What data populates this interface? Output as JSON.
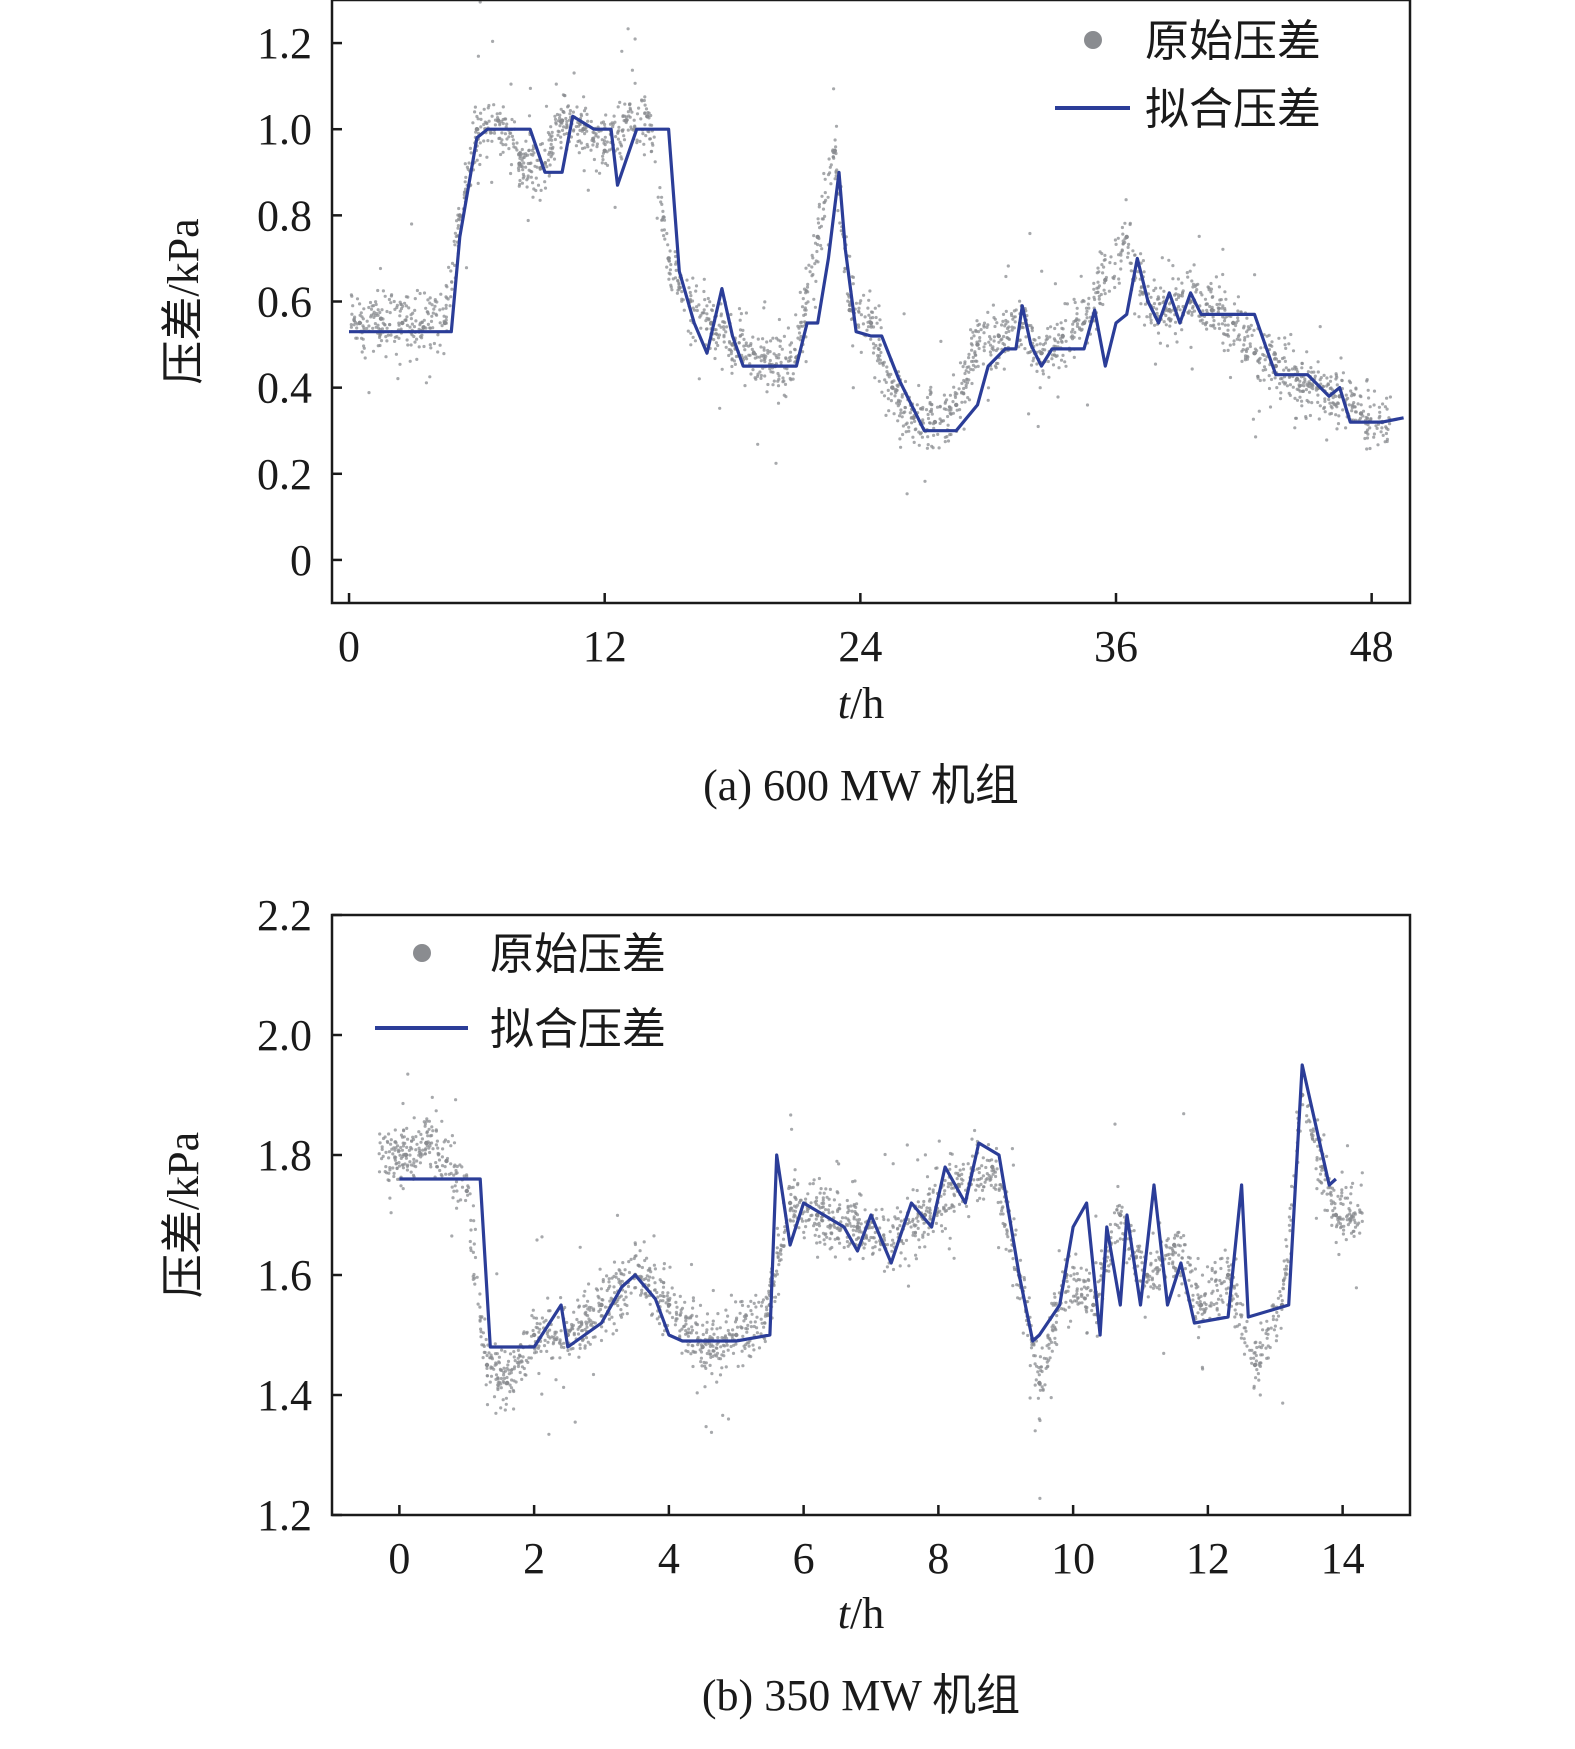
{
  "chart_data": [
    {
      "type": "line",
      "caption": "(a) 600 MW 机组",
      "xlabel_italic": "t",
      "xlabel_unit": "/h",
      "ylabel": "压差/kPa",
      "xlim": [
        -0.8,
        49.8
      ],
      "ylim": [
        -0.1,
        1.3
      ],
      "xticks": [
        0,
        12,
        24,
        36,
        48
      ],
      "yticks": [
        0,
        0.2,
        0.4,
        0.6,
        0.8,
        1.0,
        1.2
      ],
      "ytick_labels": [
        "0",
        "0.2",
        "0.4",
        "0.6",
        "0.8",
        "1.0",
        "1.2"
      ],
      "legend": {
        "placement": "top-right",
        "scatter_label": "原始压差",
        "line_label": "拟合压差"
      },
      "colors": {
        "scatter": "#8a8c90",
        "line": "#2b3d98"
      },
      "series": [
        {
          "name": "原始压差",
          "kind": "scatter",
          "x": [
            0.5,
            1.5,
            2.5,
            3.5,
            4.5,
            5.2,
            6.0,
            7.0,
            8.0,
            9.0,
            10.0,
            11.0,
            12.0,
            13.0,
            14.0,
            15.0,
            16.0,
            17.0,
            18.0,
            19.0,
            20.0,
            21.0,
            22.0,
            22.8,
            23.5,
            24.5,
            25.5,
            26.5,
            27.5,
            28.5,
            29.5,
            30.5,
            31.5,
            32.5,
            33.5,
            34.5,
            35.5,
            36.5,
            37.5,
            38.5,
            39.5,
            40.5,
            41.5,
            42.5,
            43.5,
            44.5,
            45.5,
            46.5,
            47.5,
            48.5
          ],
          "y": [
            0.55,
            0.56,
            0.55,
            0.54,
            0.55,
            0.8,
            1.0,
            1.02,
            0.92,
            0.91,
            1.02,
            1.0,
            0.95,
            1.02,
            1.03,
            0.7,
            0.6,
            0.55,
            0.5,
            0.48,
            0.45,
            0.47,
            0.75,
            0.95,
            0.58,
            0.55,
            0.4,
            0.33,
            0.32,
            0.36,
            0.5,
            0.52,
            0.55,
            0.48,
            0.52,
            0.55,
            0.65,
            0.75,
            0.6,
            0.58,
            0.6,
            0.58,
            0.55,
            0.48,
            0.45,
            0.42,
            0.4,
            0.38,
            0.34,
            0.32
          ]
        },
        {
          "name": "拟合压差",
          "kind": "line",
          "x": [
            0,
            4.8,
            5.2,
            6.0,
            6.5,
            7.5,
            8.5,
            9.2,
            10.0,
            10.5,
            11.5,
            12.3,
            12.6,
            13.5,
            14.5,
            15.0,
            15.5,
            16.2,
            16.8,
            17.5,
            18.0,
            18.5,
            20.0,
            21.0,
            21.5,
            22.0,
            22.5,
            23.0,
            23.3,
            23.8,
            24.5,
            25.0,
            25.8,
            26.5,
            27.0,
            28.5,
            29.5,
            30.0,
            30.8,
            31.3,
            31.6,
            32.0,
            32.5,
            33.0,
            33.5,
            34.5,
            35.0,
            35.5,
            36.0,
            36.5,
            37.0,
            37.5,
            38.0,
            38.5,
            39.0,
            39.5,
            40.0,
            40.5,
            41.0,
            42.5,
            43.0,
            43.5,
            44.5,
            45.0,
            46.0,
            46.5,
            47.0,
            47.5,
            48.5,
            49.5
          ],
          "y": [
            0.53,
            0.53,
            0.75,
            0.98,
            1.0,
            1.0,
            1.0,
            0.9,
            0.9,
            1.03,
            1.0,
            1.0,
            0.87,
            1.0,
            1.0,
            1.0,
            0.67,
            0.55,
            0.48,
            0.63,
            0.52,
            0.45,
            0.45,
            0.45,
            0.55,
            0.55,
            0.7,
            0.9,
            0.72,
            0.53,
            0.52,
            0.52,
            0.42,
            0.35,
            0.3,
            0.3,
            0.36,
            0.45,
            0.49,
            0.49,
            0.59,
            0.5,
            0.45,
            0.49,
            0.49,
            0.49,
            0.58,
            0.45,
            0.55,
            0.57,
            0.7,
            0.6,
            0.55,
            0.62,
            0.55,
            0.62,
            0.57,
            0.57,
            0.57,
            0.57,
            0.5,
            0.43,
            0.43,
            0.43,
            0.38,
            0.4,
            0.32,
            0.32,
            0.32,
            0.33
          ]
        }
      ]
    },
    {
      "type": "line",
      "caption": "(b) 350 MW 机组",
      "xlabel_italic": "t",
      "xlabel_unit": "/h",
      "ylabel": "压差/kPa",
      "xlim": [
        -1.0,
        15.0
      ],
      "ylim": [
        1.2,
        2.2
      ],
      "xticks": [
        0,
        2,
        4,
        6,
        8,
        10,
        12,
        14
      ],
      "yticks": [
        1.2,
        1.4,
        1.6,
        1.8,
        2.0,
        2.2
      ],
      "ytick_labels": [
        "1.2",
        "1.4",
        "1.6",
        "1.8",
        "2.0",
        "2.2"
      ],
      "legend": {
        "placement": "top-left",
        "scatter_label": "原始压差",
        "line_label": "拟合压差"
      },
      "colors": {
        "scatter": "#8a8c90",
        "line": "#2b3d98"
      },
      "series": [
        {
          "name": "原始压差",
          "kind": "scatter",
          "x": [
            0.1,
            0.4,
            0.7,
            1.0,
            1.3,
            1.6,
            2.0,
            2.5,
            3.0,
            3.5,
            4.0,
            4.5,
            5.0,
            5.5,
            5.8,
            6.2,
            6.8,
            7.2,
            7.8,
            8.3,
            8.8,
            9.2,
            9.5,
            9.9,
            10.3,
            10.7,
            11.1,
            11.5,
            11.9,
            12.3,
            12.7,
            13.1,
            13.4,
            13.7,
            13.9
          ],
          "y": [
            1.8,
            1.82,
            1.79,
            1.74,
            1.45,
            1.42,
            1.5,
            1.5,
            1.55,
            1.6,
            1.55,
            1.48,
            1.5,
            1.55,
            1.72,
            1.7,
            1.68,
            1.65,
            1.7,
            1.75,
            1.78,
            1.6,
            1.42,
            1.6,
            1.55,
            1.7,
            1.6,
            1.65,
            1.55,
            1.6,
            1.45,
            1.55,
            1.9,
            1.78,
            1.7
          ]
        },
        {
          "name": "拟合压差",
          "kind": "line",
          "x": [
            0,
            0.5,
            1.0,
            1.2,
            1.35,
            1.5,
            2.0,
            2.4,
            2.5,
            3.0,
            3.3,
            3.5,
            3.8,
            4.0,
            4.2,
            5.0,
            5.5,
            5.6,
            5.8,
            6.0,
            6.3,
            6.6,
            6.8,
            7.0,
            7.3,
            7.6,
            7.9,
            8.1,
            8.4,
            8.6,
            8.9,
            9.2,
            9.4,
            9.5,
            9.8,
            10.0,
            10.2,
            10.4,
            10.5,
            10.7,
            10.8,
            11.0,
            11.2,
            11.4,
            11.6,
            11.8,
            12.3,
            12.5,
            12.6,
            13.2,
            13.4,
            13.6,
            13.8,
            13.9
          ],
          "y": [
            1.76,
            1.76,
            1.76,
            1.76,
            1.48,
            1.48,
            1.48,
            1.55,
            1.48,
            1.52,
            1.58,
            1.6,
            1.56,
            1.5,
            1.49,
            1.49,
            1.5,
            1.8,
            1.65,
            1.72,
            1.7,
            1.68,
            1.64,
            1.7,
            1.62,
            1.72,
            1.68,
            1.78,
            1.72,
            1.82,
            1.8,
            1.6,
            1.49,
            1.5,
            1.55,
            1.68,
            1.72,
            1.5,
            1.68,
            1.55,
            1.7,
            1.55,
            1.75,
            1.55,
            1.62,
            1.52,
            1.53,
            1.75,
            1.53,
            1.55,
            1.95,
            1.85,
            1.75,
            1.76
          ]
        }
      ]
    }
  ]
}
